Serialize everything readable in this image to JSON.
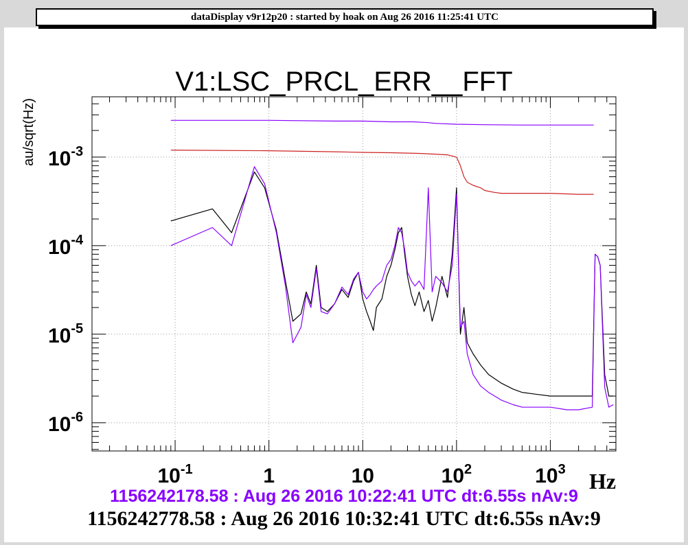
{
  "app": {
    "header": "dataDisplay v9r12p20 : started by hoak on Aug 26 2016 11:25:41 UTC"
  },
  "chart_data": {
    "type": "line",
    "title": "V1:LSC_PRCL_ERR__FFT",
    "ylabel": "au/sqrt(Hz)",
    "xlabel": "Hz",
    "x_scale": "log",
    "y_scale": "log",
    "xlim": [
      0.013,
      5000
    ],
    "ylim": [
      4.8e-07,
      0.0048
    ],
    "grid": true,
    "x_ticks": [
      {
        "value": 0.1,
        "base": "10",
        "exp": "-1"
      },
      {
        "value": 1,
        "base": "1",
        "exp": ""
      },
      {
        "value": 10,
        "base": "10",
        "exp": ""
      },
      {
        "value": 100,
        "base": "10",
        "exp": "2"
      },
      {
        "value": 1000,
        "base": "10",
        "exp": "3"
      }
    ],
    "y_ticks": [
      {
        "value": 1e-06,
        "base": "10",
        "exp": "-6"
      },
      {
        "value": 1e-05,
        "base": "10",
        "exp": "-5"
      },
      {
        "value": 0.0001,
        "base": "10",
        "exp": "-4"
      },
      {
        "value": 0.001,
        "base": "10",
        "exp": "-3"
      }
    ],
    "series": [
      {
        "color": "#000000",
        "x": [
          0.09,
          0.25,
          0.4,
          0.7,
          0.9,
          1.2,
          1.5,
          1.8,
          2.2,
          2.5,
          2.8,
          3.2,
          3.6,
          4.2,
          5,
          6,
          7,
          8,
          9,
          10,
          11,
          12,
          13,
          14,
          16,
          18,
          20,
          22,
          24,
          26,
          28,
          30,
          33,
          36,
          40,
          45,
          50,
          55,
          60,
          70,
          80,
          90,
          100,
          110,
          120,
          130,
          150,
          180,
          220,
          300,
          400,
          500,
          700,
          1000,
          1500,
          2000,
          2800,
          3000,
          3200,
          3400,
          3800,
          4200,
          4700
        ],
        "y": [
          0.00019,
          0.00026,
          0.00014,
          0.00068,
          0.00045,
          0.00015,
          4e-05,
          1.4e-05,
          1.7e-05,
          3e-05,
          2.2e-05,
          6e-05,
          2e-05,
          1.8e-05,
          2.2e-05,
          3.2e-05,
          2.6e-05,
          4e-05,
          5e-05,
          2.5e-05,
          1.8e-05,
          1.4e-05,
          1.1e-05,
          2e-05,
          2.5e-05,
          4.5e-05,
          6e-05,
          9e-05,
          0.00014,
          0.00016,
          8e-05,
          4.5e-05,
          2.8e-05,
          2.1e-05,
          3e-05,
          1.8e-05,
          2.4e-05,
          1.4e-05,
          2e-05,
          4.5e-05,
          2.6e-05,
          8e-05,
          0.00045,
          1e-05,
          2e-05,
          8e-06,
          6e-06,
          4.5e-06,
          3.5e-06,
          2.8e-06,
          2.4e-06,
          2.2e-06,
          2.1e-06,
          2e-06,
          2e-06,
          2e-06,
          2e-06,
          8e-05,
          7.5e-05,
          6e-05,
          3.5e-06,
          2e-06,
          2e-06
        ]
      },
      {
        "color": "#8800ff",
        "x": [
          0.09,
          0.25,
          0.4,
          0.7,
          0.9,
          1.2,
          1.5,
          1.8,
          2.2,
          2.5,
          2.8,
          3.2,
          3.6,
          4.2,
          5,
          6,
          7,
          8,
          9,
          10,
          11,
          12,
          13,
          14,
          16,
          18,
          20,
          22,
          24,
          26,
          28,
          30,
          33,
          36,
          40,
          45,
          50,
          55,
          60,
          70,
          80,
          90,
          100,
          110,
          120,
          130,
          150,
          180,
          220,
          300,
          400,
          500,
          700,
          1000,
          1500,
          2000,
          2800,
          3000,
          3200,
          3400,
          3800,
          4200,
          4700
        ],
        "y": [
          0.0001,
          0.00016,
          0.0001,
          0.00078,
          0.0005,
          0.00014,
          3.5e-05,
          8e-06,
          1.2e-05,
          2.8e-05,
          2e-05,
          5.5e-05,
          1.8e-05,
          1.7e-05,
          2.2e-05,
          3.4e-05,
          2.8e-05,
          4.2e-05,
          5e-05,
          3e-05,
          2.5e-05,
          2.8e-05,
          3.2e-05,
          3.5e-05,
          4e-05,
          6e-05,
          7e-05,
          0.0001,
          0.00016,
          0.00014,
          9e-05,
          5e-05,
          4e-05,
          3.5e-05,
          4e-05,
          3.2e-05,
          0.00045,
          3e-05,
          4.5e-05,
          3.8e-05,
          3e-05,
          6e-05,
          0.00038,
          1.2e-05,
          1.4e-05,
          6e-06,
          3.5e-06,
          2.6e-06,
          2.2e-06,
          1.8e-06,
          1.6e-06,
          1.5e-06,
          1.5e-06,
          1.5e-06,
          1.4e-06,
          1.4e-06,
          1.5e-06,
          8e-05,
          7.5e-05,
          6e-05,
          2.5e-06,
          1.5e-06,
          1.6e-06
        ]
      },
      {
        "color": "#8800ff",
        "x": [
          0.09,
          1,
          5,
          10,
          20,
          35,
          50,
          60,
          100,
          200,
          500,
          1000,
          2000,
          2900
        ],
        "y": [
          0.0026,
          0.0026,
          0.00255,
          0.00255,
          0.0025,
          0.0025,
          0.00245,
          0.0024,
          0.00235,
          0.00232,
          0.0023,
          0.0023,
          0.0023,
          0.0023
        ]
      },
      {
        "color": "#cc2020",
        "x": [
          0.09,
          1,
          5,
          10,
          20,
          40,
          60,
          80,
          100,
          110,
          120,
          130,
          150,
          180,
          200,
          250,
          300,
          500,
          1000,
          2000,
          2900
        ],
        "y": [
          0.0012,
          0.00118,
          0.00115,
          0.00113,
          0.00112,
          0.0011,
          0.00108,
          0.00106,
          0.001,
          0.0008,
          0.0006,
          0.00052,
          0.00048,
          0.00045,
          0.00042,
          0.0004,
          0.00039,
          0.00039,
          0.00039,
          0.00038,
          0.00038
        ]
      }
    ]
  },
  "footer": {
    "line1": "1156242178.58 : Aug 26 2016 10:22:41 UTC dt:6.55s nAv:9",
    "line1_color": "#8800ff",
    "line2": "1156242778.58 : Aug 26 2016 10:32:41 UTC dt:6.55s nAv:9"
  }
}
